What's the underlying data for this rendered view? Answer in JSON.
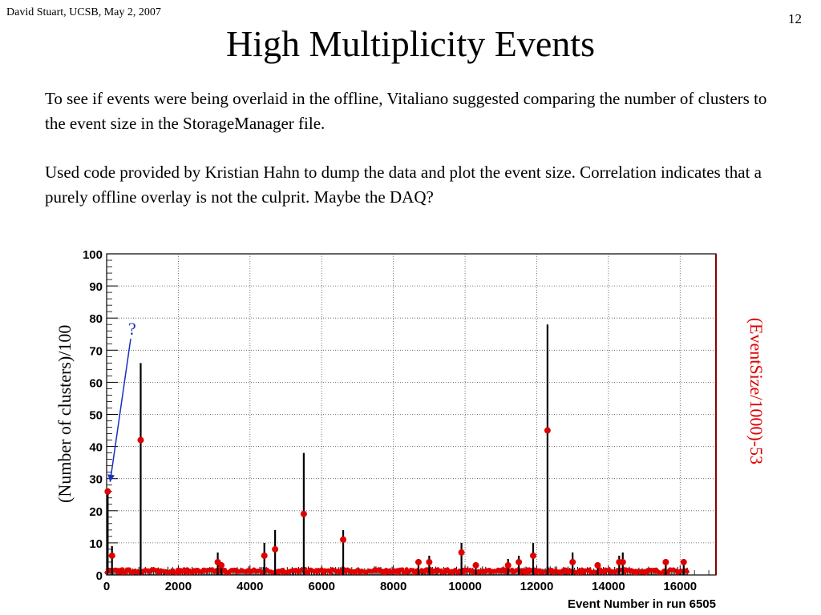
{
  "slide": {
    "author_line": "David Stuart, UCSB, May 2, 2007",
    "page_number": "12",
    "title": "High Multiplicity Events",
    "paragraphs": [
      "To see if events were being overlaid in the offline, Vitaliano suggested comparing the number of clusters to the event size in the StorageManager file.",
      "Used code provided by Kristian Hahn to dump the data and plot the event size. Correlation indicates that a purely offline overlay is not the culprit. Maybe the DAQ?"
    ],
    "annotation": "?"
  },
  "colors": {
    "clusters": "#000000",
    "eventsize": "#e00000",
    "right_axis": "#8b0000",
    "annotation": "#1a2fbf"
  },
  "chart_data": {
    "type": "scatter",
    "xlabel": "Event Number in run 6505",
    "ylabel_left": "(Number of clusters)/100",
    "ylabel_right": "(EventSize/1000)-53",
    "xlim": [
      0,
      17000
    ],
    "ylim": [
      0,
      100
    ],
    "xticks": [
      0,
      2000,
      4000,
      6000,
      8000,
      10000,
      12000,
      14000,
      16000
    ],
    "yticks": [
      0,
      10,
      20,
      30,
      40,
      50,
      60,
      70,
      80,
      90,
      100
    ],
    "grid": true,
    "series": [
      {
        "style": "spikes",
        "x": [
          30,
          150,
          950,
          3100,
          3200,
          4400,
          4700,
          5500,
          6600,
          8700,
          9000,
          9900,
          10300,
          11200,
          11500,
          11900,
          12300,
          13000,
          13700,
          14300,
          14400,
          15600,
          16100
        ],
        "y": [
          27,
          9,
          66,
          7,
          4,
          10,
          14,
          38,
          14,
          5,
          6,
          10,
          4,
          5,
          6,
          10,
          78,
          7,
          4,
          6,
          7,
          5,
          5
        ]
      },
      {
        "style": "points",
        "x": [
          30,
          150,
          950,
          3100,
          3200,
          4400,
          4700,
          5500,
          6600,
          8700,
          9000,
          9900,
          10300,
          11200,
          11500,
          11900,
          12300,
          13000,
          13700,
          14300,
          14400,
          15600,
          16100
        ],
        "y": [
          26,
          6,
          42,
          4,
          3,
          6,
          8,
          19,
          11,
          4,
          4,
          7,
          3,
          3,
          4,
          6,
          45,
          4,
          3,
          4,
          4,
          4,
          4
        ]
      }
    ],
    "arrow_to": {
      "x": 30,
      "y": 28
    }
  }
}
